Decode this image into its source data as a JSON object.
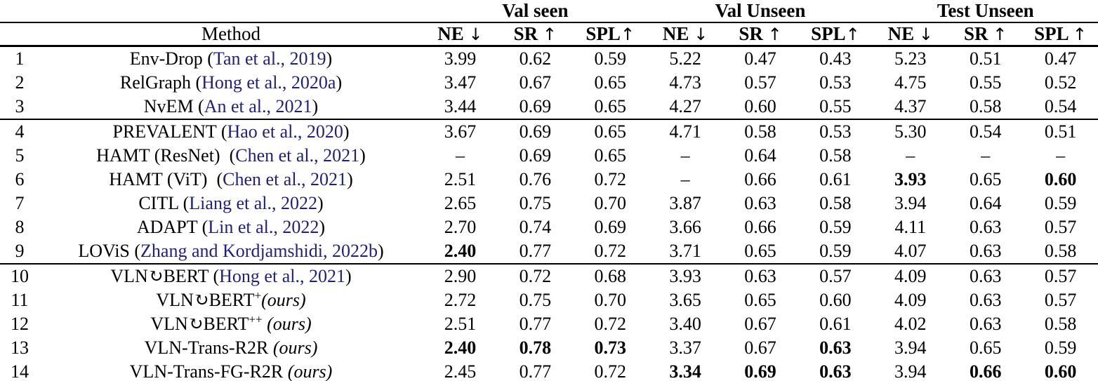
{
  "table": {
    "colors": {
      "citation": "#1f1f82",
      "text": "#000000"
    },
    "group_headers": [
      {
        "label": "Val seen"
      },
      {
        "label": "Val Unseen"
      },
      {
        "label": "Test Unseen"
      }
    ],
    "col_headers": {
      "method": "Method",
      "metrics": [
        {
          "label": "NE ",
          "arrow": "↓"
        },
        {
          "label": "SR ",
          "arrow": "↑"
        },
        {
          "label": "SPL",
          "arrow": "↑"
        },
        {
          "label": "NE ",
          "arrow": "↓"
        },
        {
          "label": "SR ",
          "arrow": "↑"
        },
        {
          "label": "SPL",
          "arrow": "↑"
        },
        {
          "label": "NE ",
          "arrow": "↓"
        },
        {
          "label": "SR ",
          "arrow": "↑"
        },
        {
          "label": "SPL ",
          "arrow": "↑"
        }
      ]
    },
    "rows": [
      {
        "num": "1",
        "method": [
          {
            "t": "Env-Drop (",
            "s": "n"
          },
          {
            "t": "Tan et al., 2019",
            "s": "c"
          },
          {
            "t": ")",
            "s": "n"
          }
        ],
        "vals": [
          "3.99",
          "0.62",
          "0.59",
          "5.22",
          "0.47",
          "0.43",
          "5.23",
          "0.51",
          "0.47"
        ],
        "bold": [
          0,
          0,
          0,
          0,
          0,
          0,
          0,
          0,
          0
        ],
        "rule": false
      },
      {
        "num": "2",
        "method": [
          {
            "t": "RelGraph (",
            "s": "n"
          },
          {
            "t": "Hong et al., 2020a",
            "s": "c"
          },
          {
            "t": ")",
            "s": "n"
          }
        ],
        "vals": [
          "3.47",
          "0.67",
          "0.65",
          "4.73",
          "0.57",
          "0.53",
          "4.75",
          "0.55",
          "0.52"
        ],
        "bold": [
          0,
          0,
          0,
          0,
          0,
          0,
          0,
          0,
          0
        ],
        "rule": false
      },
      {
        "num": "3",
        "method": [
          {
            "t": "NvEM (",
            "s": "n"
          },
          {
            "t": "An et al., 2021",
            "s": "c"
          },
          {
            "t": ")",
            "s": "n"
          }
        ],
        "vals": [
          "3.44",
          "0.69",
          "0.65",
          "4.27",
          "0.60",
          "0.55",
          "4.37",
          "0.58",
          "0.54"
        ],
        "bold": [
          0,
          0,
          0,
          0,
          0,
          0,
          0,
          0,
          0
        ],
        "rule": true
      },
      {
        "num": "4",
        "method": [
          {
            "t": "PREVALENT (",
            "s": "n"
          },
          {
            "t": "Hao et al., 2020",
            "s": "c"
          },
          {
            "t": ")",
            "s": "n"
          }
        ],
        "vals": [
          "3.67",
          "0.69",
          "0.65",
          "4.71",
          "0.58",
          "0.53",
          "5.30",
          "0.54",
          "0.51"
        ],
        "bold": [
          0,
          0,
          0,
          0,
          0,
          0,
          0,
          0,
          0
        ],
        "rule": false
      },
      {
        "num": "5",
        "method": [
          {
            "t": "HAMT (ResNet)  (",
            "s": "n"
          },
          {
            "t": "Chen et al., 2021",
            "s": "c"
          },
          {
            "t": ")",
            "s": "n"
          }
        ],
        "vals": [
          "–",
          "0.69",
          "0.65",
          "–",
          "0.64",
          "0.58",
          "–",
          "–",
          "–"
        ],
        "bold": [
          0,
          0,
          0,
          0,
          0,
          0,
          0,
          0,
          0
        ],
        "rule": false
      },
      {
        "num": "6",
        "method": [
          {
            "t": "HAMT (ViT)  (",
            "s": "n"
          },
          {
            "t": "Chen et al., 2021",
            "s": "c"
          },
          {
            "t": ")",
            "s": "n"
          }
        ],
        "vals": [
          "2.51",
          "0.76",
          "0.72",
          "–",
          "0.66",
          "0.61",
          "3.93",
          "0.65",
          "0.60"
        ],
        "bold": [
          0,
          0,
          0,
          0,
          0,
          0,
          1,
          0,
          1
        ],
        "rule": false
      },
      {
        "num": "7",
        "method": [
          {
            "t": "CITL (",
            "s": "n"
          },
          {
            "t": "Liang et al., 2022",
            "s": "c"
          },
          {
            "t": ")",
            "s": "n"
          }
        ],
        "vals": [
          "2.65",
          "0.75",
          "0.70",
          "3.87",
          "0.63",
          "0.58",
          "3.94",
          "0.64",
          "0.59"
        ],
        "bold": [
          0,
          0,
          0,
          0,
          0,
          0,
          0,
          0,
          0
        ],
        "rule": false
      },
      {
        "num": "8",
        "method": [
          {
            "t": "ADAPT (",
            "s": "n"
          },
          {
            "t": "Lin et al., 2022",
            "s": "c"
          },
          {
            "t": ")",
            "s": "n"
          }
        ],
        "vals": [
          "2.70",
          "0.74",
          "0.69",
          "3.66",
          "0.66",
          "0.59",
          "4.11",
          "0.63",
          "0.57"
        ],
        "bold": [
          0,
          0,
          0,
          0,
          0,
          0,
          0,
          0,
          0
        ],
        "rule": false
      },
      {
        "num": "9",
        "method": [
          {
            "t": "LOViS (",
            "s": "n"
          },
          {
            "t": "Zhang and Kordjamshidi, 2022b",
            "s": "c"
          },
          {
            "t": ")",
            "s": "n"
          }
        ],
        "vals": [
          "2.40",
          "0.77",
          "0.72",
          "3.71",
          "0.65",
          "0.59",
          "4.07",
          "0.63",
          "0.58"
        ],
        "bold": [
          1,
          0,
          0,
          0,
          0,
          0,
          0,
          0,
          0
        ],
        "rule": true
      },
      {
        "num": "10",
        "method": [
          {
            "t": "VLN↻BERT (",
            "s": "n"
          },
          {
            "t": "Hong et al., 2021",
            "s": "c"
          },
          {
            "t": ")",
            "s": "n"
          }
        ],
        "vals": [
          "2.90",
          "0.72",
          "0.68",
          "3.93",
          "0.63",
          "0.57",
          "4.09",
          "0.63",
          "0.57"
        ],
        "bold": [
          0,
          0,
          0,
          0,
          0,
          0,
          0,
          0,
          0
        ],
        "rule": false
      },
      {
        "num": "11",
        "method": [
          {
            "t": "VLN↻BERT",
            "s": "n"
          },
          {
            "t": "+",
            "s": "sup"
          },
          {
            "t": "(ours)",
            "s": "i"
          }
        ],
        "vals": [
          "2.72",
          "0.75",
          "0.70",
          "3.65",
          "0.65",
          "0.60",
          "4.09",
          "0.63",
          "0.57"
        ],
        "bold": [
          0,
          0,
          0,
          0,
          0,
          0,
          0,
          0,
          0
        ],
        "rule": false
      },
      {
        "num": "12",
        "method": [
          {
            "t": "VLN↻BERT",
            "s": "n"
          },
          {
            "t": "++",
            "s": "sup"
          },
          {
            "t": " ",
            "s": "n"
          },
          {
            "t": "(ours)",
            "s": "i"
          }
        ],
        "vals": [
          "2.51",
          "0.77",
          "0.72",
          "3.40",
          "0.67",
          "0.61",
          "4.02",
          "0.63",
          "0.58"
        ],
        "bold": [
          0,
          0,
          0,
          0,
          0,
          0,
          0,
          0,
          0
        ],
        "rule": false
      },
      {
        "num": "13",
        "method": [
          {
            "t": "VLN-Trans-R2R ",
            "s": "n"
          },
          {
            "t": "(ours)",
            "s": "i"
          }
        ],
        "vals": [
          "2.40",
          "0.78",
          "0.73",
          "3.37",
          "0.67",
          "0.63",
          "3.94",
          "0.65",
          "0.59"
        ],
        "bold": [
          1,
          1,
          1,
          0,
          0,
          1,
          0,
          0,
          0
        ],
        "rule": false
      },
      {
        "num": "14",
        "method": [
          {
            "t": "VLN-Trans-FG-R2R ",
            "s": "n"
          },
          {
            "t": "(ours)",
            "s": "i"
          }
        ],
        "vals": [
          "2.45",
          "0.77",
          "0.72",
          "3.34",
          "0.69",
          "0.63",
          "3.94",
          "0.66",
          "0.60"
        ],
        "bold": [
          0,
          0,
          0,
          1,
          1,
          1,
          0,
          1,
          1
        ],
        "rule": false
      }
    ]
  }
}
